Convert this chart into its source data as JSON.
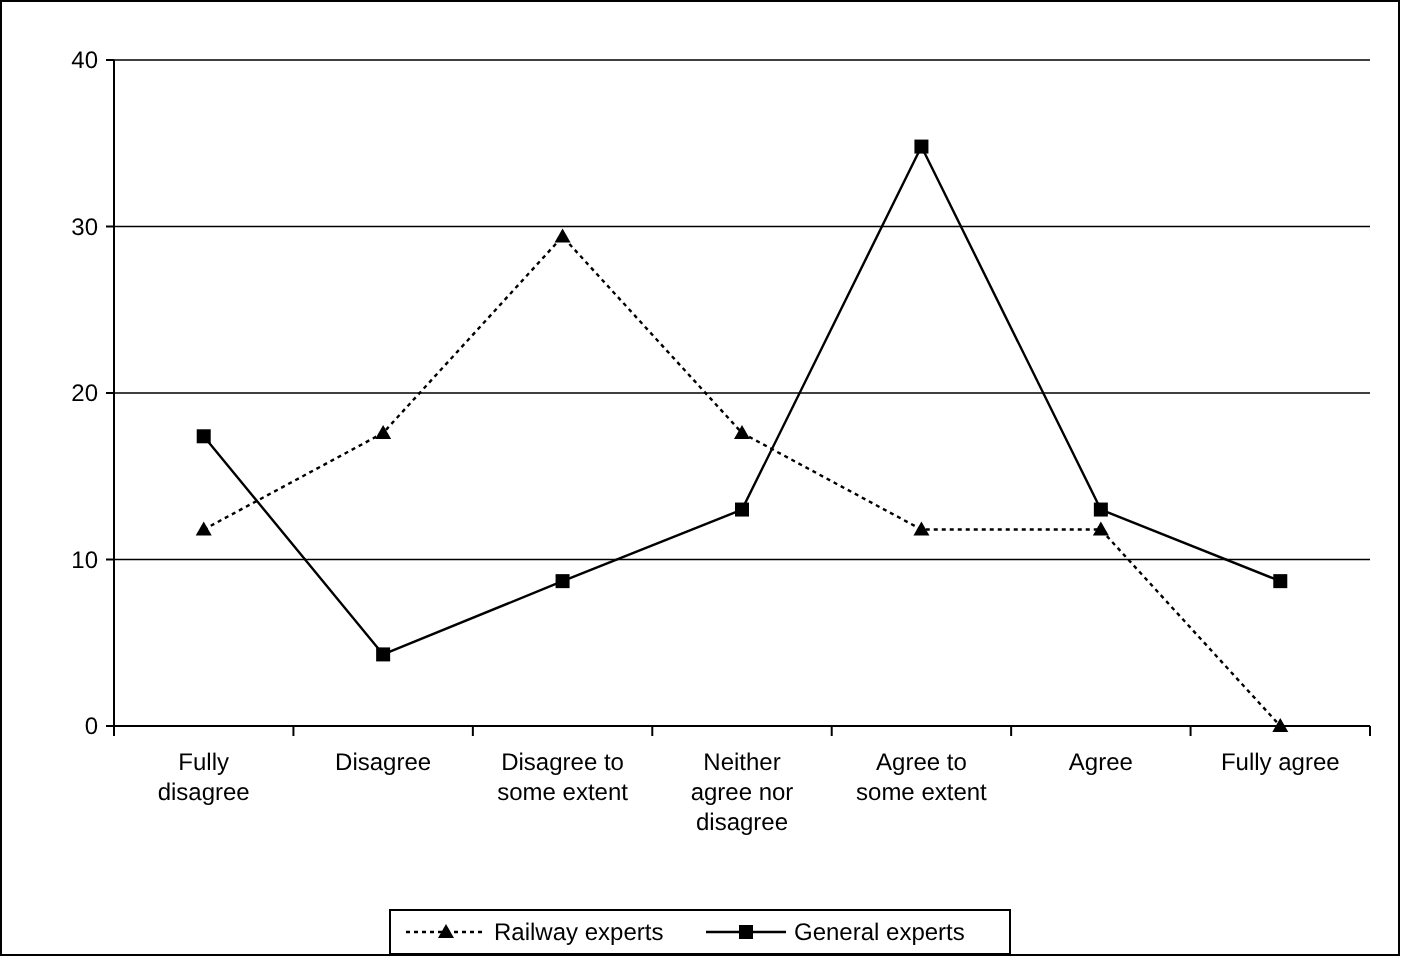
{
  "chart_data": {
    "type": "line",
    "categories": [
      "Fully disagree",
      "Disagree",
      "Disagree to some extent",
      "Neither agree nor disagree",
      "Agree to some extent",
      "Agree",
      "Fully agree"
    ],
    "series": [
      {
        "name": "Railway experts",
        "color": "#000000",
        "marker": "triangle",
        "line_style": "dotted",
        "values": [
          11.8,
          17.6,
          29.4,
          17.6,
          11.8,
          11.8,
          0
        ]
      },
      {
        "name": "General experts",
        "color": "#000000",
        "marker": "square",
        "line_style": "solid",
        "values": [
          17.4,
          4.3,
          8.7,
          13.0,
          34.8,
          13.0,
          8.7
        ]
      }
    ],
    "ylim": [
      0,
      40
    ],
    "yticks": [
      0,
      10,
      20,
      30,
      40
    ],
    "grid": "y",
    "legend": "bottom"
  }
}
